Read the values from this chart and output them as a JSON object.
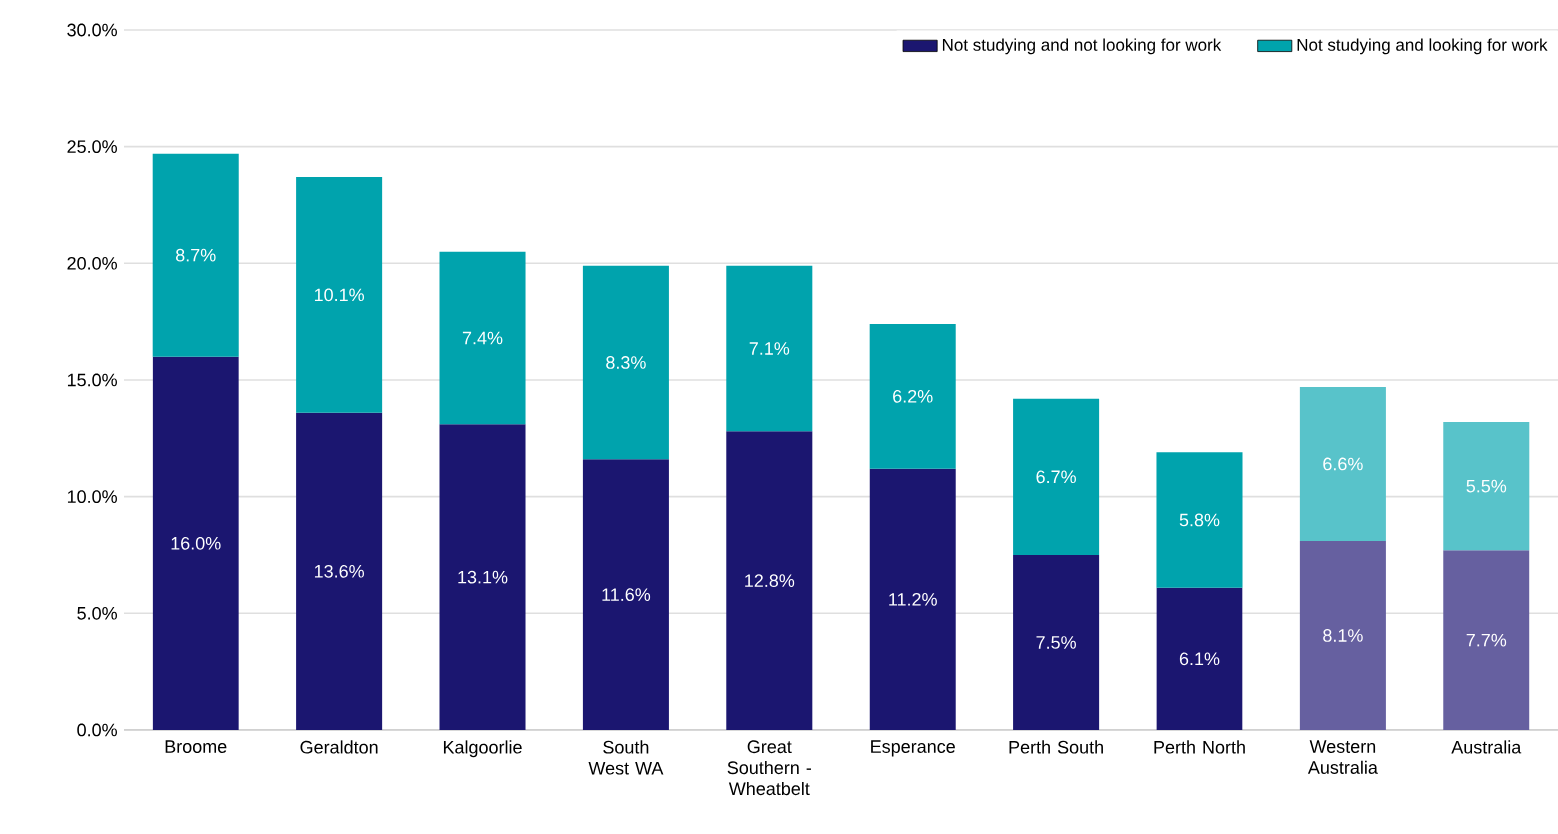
{
  "chart_data": {
    "type": "bar",
    "stacked": true,
    "categories": [
      "Broome",
      "Geraldton",
      "Kalgoorlie",
      "South West WA",
      "Great Southern - Wheatbelt",
      "Esperance",
      "Perth South",
      "Perth North",
      "Western Australia",
      "Australia"
    ],
    "series": [
      {
        "name": "Not studying and not looking for work",
        "color": "#1b1670",
        "colors": [
          "#1b1670",
          "#1b1670",
          "#1b1670",
          "#1b1670",
          "#1b1670",
          "#1b1670",
          "#1b1670",
          "#1b1670",
          "#6660a0",
          "#6660a0"
        ],
        "values": [
          16.0,
          13.6,
          13.1,
          11.6,
          12.8,
          11.2,
          7.5,
          6.1,
          8.1,
          7.7
        ],
        "value_labels": [
          "16.0%",
          "13.6%",
          "13.1%",
          "11.6%",
          "12.8%",
          "11.2%",
          "7.5%",
          "6.1%",
          "8.1%",
          "7.7%"
        ]
      },
      {
        "name": "Not studying and looking for work",
        "color": "#00a3ad",
        "colors": [
          "#00a3ad",
          "#00a3ad",
          "#00a3ad",
          "#00a3ad",
          "#00a3ad",
          "#00a3ad",
          "#00a3ad",
          "#00a3ad",
          "#58c3ca",
          "#58c3ca"
        ],
        "values": [
          8.7,
          10.1,
          7.4,
          8.3,
          7.1,
          6.2,
          6.7,
          5.8,
          6.6,
          5.5
        ],
        "value_labels": [
          "8.7%",
          "10.1%",
          "7.4%",
          "8.3%",
          "7.1%",
          "6.2%",
          "6.7%",
          "5.8%",
          "6.6%",
          "5.5%"
        ]
      }
    ],
    "ylim": [
      0,
      30
    ],
    "yticks": [
      {
        "value": 0,
        "label": "0.0%"
      },
      {
        "value": 5,
        "label": "5.0%"
      },
      {
        "value": 10,
        "label": "10.0%"
      },
      {
        "value": 15,
        "label": "15.0%"
      },
      {
        "value": 20,
        "label": "20.0%"
      },
      {
        "value": 25,
        "label": "25.0%"
      },
      {
        "value": 30,
        "label": "30.0%"
      }
    ],
    "grid": "y",
    "legend": "top right"
  }
}
